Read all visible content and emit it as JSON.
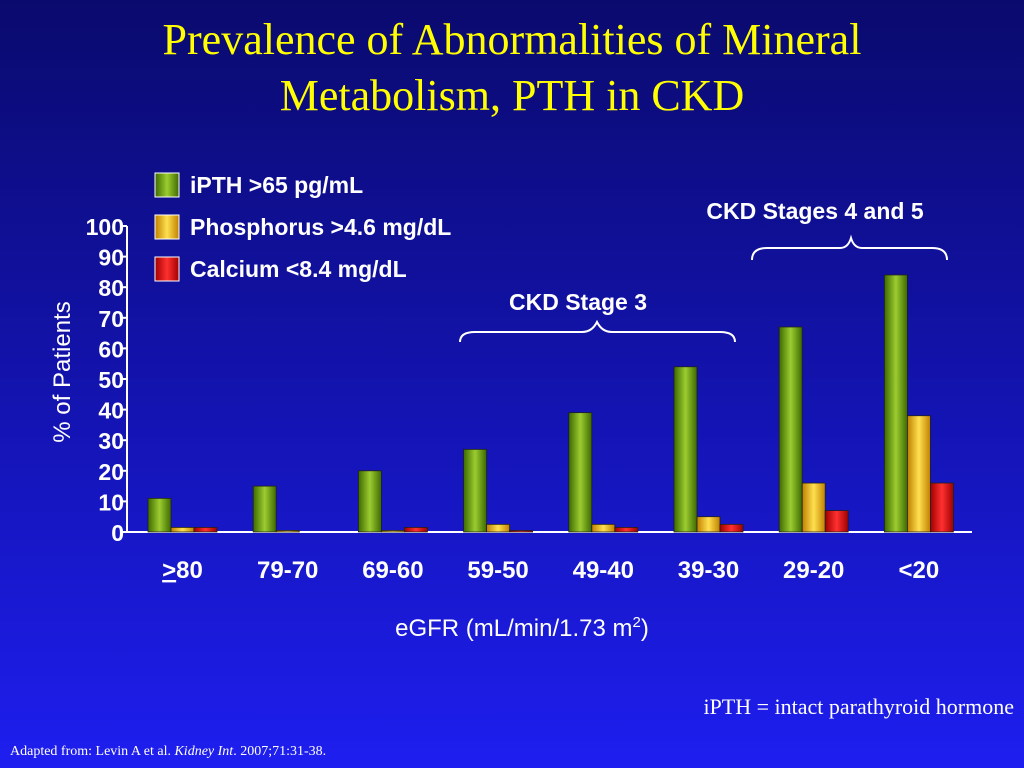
{
  "title_line1": "Prevalence of Abnormalities of Mineral",
  "title_line2": "Metabolism, PTH in CKD",
  "footer_note": "iPTH = intact parathyroid hormone",
  "citation": {
    "prefix": "Adapted from: Levin A  et al. ",
    "journal": "Kidney Int",
    "suffix": ". 2007;71:31-38."
  },
  "colors": {
    "background": "#1414b4",
    "title": "#ffff00",
    "text": "#ffffff",
    "ipth": "#6aa010",
    "phosphorus": "#f0b800",
    "calcium": "#e01010"
  },
  "chart_data": {
    "type": "bar",
    "categories": [
      ">80",
      "79-70",
      "69-60",
      "59-50",
      "49-40",
      "39-30",
      "29-20",
      "<20"
    ],
    "series": [
      {
        "name": "iPTH >65 pg/mL",
        "color": "#6aa010",
        "values": [
          11,
          15,
          20,
          27,
          39,
          54,
          67,
          84
        ]
      },
      {
        "name": "Phosphorus >4.6 mg/dL",
        "color": "#f0b800",
        "values": [
          1.5,
          0.5,
          0.5,
          2.5,
          2.5,
          5,
          16,
          38
        ]
      },
      {
        "name": "Calcium <8.4 mg/dL",
        "color": "#e01010",
        "values": [
          1.5,
          0,
          1.5,
          0.5,
          1.5,
          2.5,
          7,
          16
        ]
      }
    ],
    "xlabel": "eGFR (mL/min/1.73 m",
    "xlabel_sup": "2",
    "xlabel_end": ")",
    "ylabel": "% of Patients",
    "ylim": [
      0,
      100
    ],
    "yticks": [
      0,
      10,
      20,
      30,
      40,
      50,
      60,
      70,
      80,
      90,
      100
    ],
    "legend_position": "top-left",
    "grid": false,
    "annotations": [
      {
        "text": "CKD Stage 3",
        "spans": [
          "59-50",
          "39-30"
        ]
      },
      {
        "text": "CKD Stages 4 and 5",
        "spans": [
          "29-20",
          "<20"
        ]
      }
    ]
  }
}
